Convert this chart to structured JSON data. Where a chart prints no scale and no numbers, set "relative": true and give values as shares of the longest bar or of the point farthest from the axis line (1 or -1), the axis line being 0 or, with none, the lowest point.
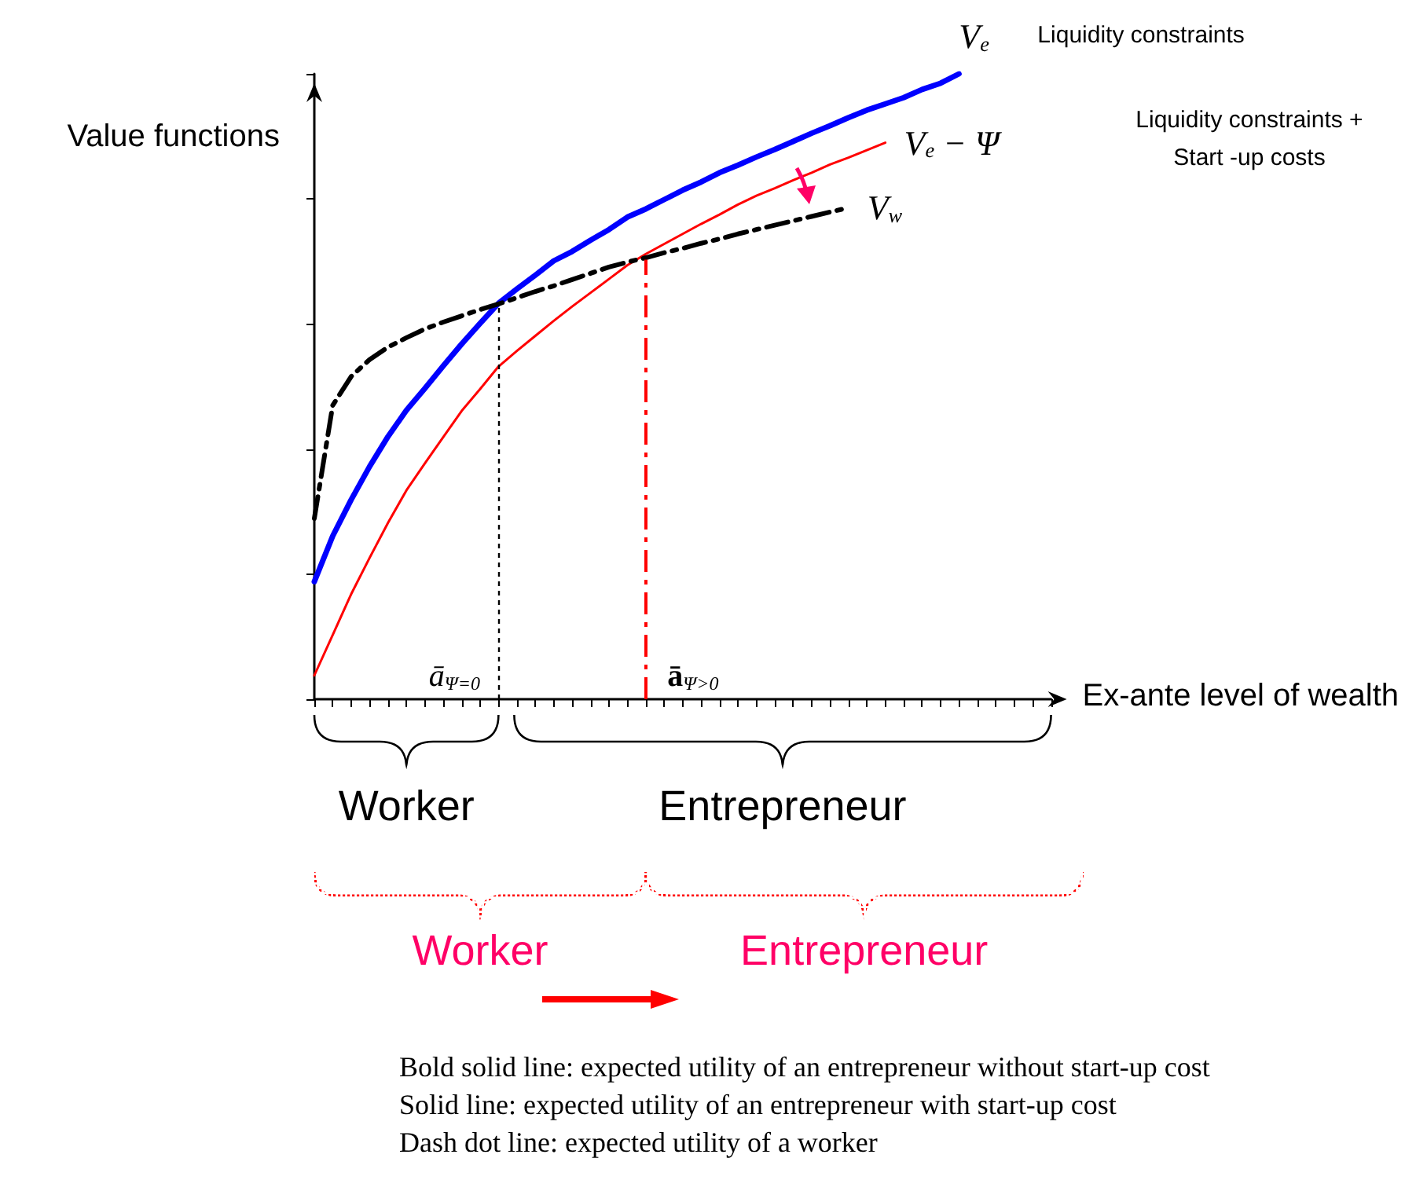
{
  "chart_data": {
    "type": "line",
    "relative": true,
    "ylabel": "Value functions",
    "xlabel": "Ex-ante level of wealth",
    "categories": [
      null,
      null,
      null,
      null,
      null,
      null,
      null,
      null,
      null,
      null,
      null,
      null,
      null,
      null,
      null,
      null,
      null,
      null,
      null,
      null,
      null,
      null,
      null,
      null,
      null,
      null,
      null,
      null,
      null,
      null,
      null,
      null,
      null,
      null,
      null,
      null,
      null,
      null,
      null,
      null,
      null
    ],
    "series": [
      {
        "name": "V$_{e}$",
        "color": "#0000ff",
        "line_style": "solid",
        "values": [
          0.188,
          0.261,
          0.319,
          0.372,
          0.42,
          0.462,
          0.497,
          0.533,
          0.568,
          0.601,
          0.633,
          0.656,
          0.678,
          0.701,
          0.716,
          0.734,
          0.751,
          0.771,
          0.784,
          0.799,
          0.814,
          0.827,
          0.842,
          0.854,
          0.867,
          0.879,
          0.892,
          0.905,
          0.917,
          0.93,
          0.942,
          0.952,
          0.962,
          0.975,
          0.985,
          1,
          null,
          null,
          null,
          null,
          null
        ]
      },
      {
        "name": "V$_{e}$ − Ψ",
        "color": "#ff0000",
        "line_style": "solid",
        "values": [
          0.038,
          0.103,
          0.168,
          0.226,
          0.282,
          0.334,
          0.377,
          0.419,
          0.461,
          0.496,
          0.532,
          0.557,
          0.581,
          0.605,
          0.628,
          0.65,
          0.672,
          0.694,
          0.712,
          0.728,
          0.744,
          0.76,
          0.775,
          0.791,
          0.805,
          0.817,
          0.83,
          0.842,
          0.855,
          0.866,
          0.878,
          0.89,
          null,
          null,
          null,
          null,
          null,
          null,
          null,
          null,
          null
        ]
      },
      {
        "name": "V$_{w}$",
        "color": "#000000",
        "line_style": "dashed",
        "values": [
          0.289,
          0.47,
          0.516,
          0.543,
          0.563,
          0.578,
          0.592,
          0.603,
          0.613,
          0.623,
          0.632,
          0.642,
          0.652,
          0.661,
          0.671,
          0.681,
          0.691,
          0.699,
          0.706,
          0.714,
          0.721,
          0.729,
          0.736,
          0.744,
          0.751,
          0.758,
          0.765,
          0.772,
          0.779,
          0.786,
          null,
          null,
          null,
          null,
          null,
          null,
          null,
          null,
          null,
          null,
          null
        ]
      }
    ],
    "annotations": [
      "Liquidity constraints",
      "Liquidity constraints + Start -up costs",
      "Worker",
      "Entrepreneur",
      "Worker",
      "Entrepreneur",
      "Bold solid line: expected utility of an entrepreneur without start-up cost",
      "Solid line: expected utility of an entrepreneur with start-up cost",
      "Dash dot line: expected utility of a worker",
      "ā$_{Ψ=0}$",
      "ā$_{Ψ>0}$"
    ]
  }
}
